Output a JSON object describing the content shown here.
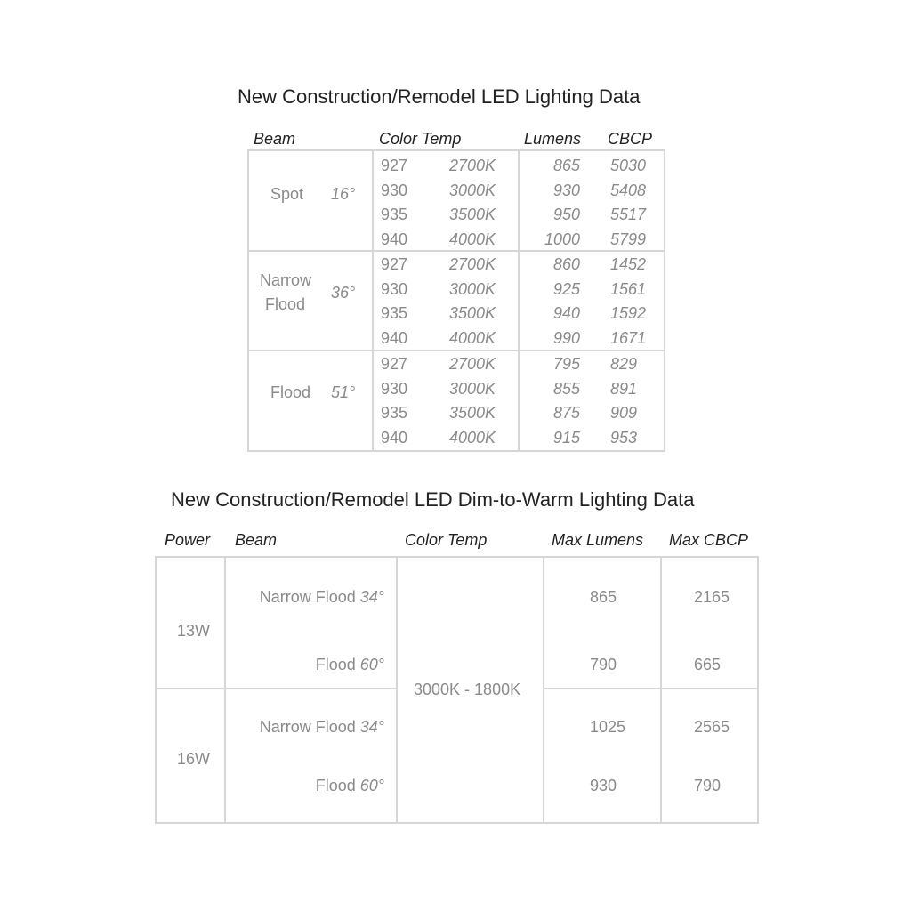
{
  "table1": {
    "title": "New Construction/Remodel LED Lighting Data",
    "headers": {
      "beam": "Beam",
      "color_temp": "Color Temp",
      "lumens": "Lumens",
      "cbcp": "CBCP"
    },
    "groups": [
      {
        "beam": [
          "Spot"
        ],
        "angle": "16°",
        "rows": [
          {
            "code": "927",
            "temp": "2700K",
            "lumens": "865",
            "cbcp": "5030"
          },
          {
            "code": "930",
            "temp": "3000K",
            "lumens": "930",
            "cbcp": "5408"
          },
          {
            "code": "935",
            "temp": "3500K",
            "lumens": "950",
            "cbcp": "5517"
          },
          {
            "code": "940",
            "temp": "4000K",
            "lumens": "1000",
            "cbcp": "5799"
          }
        ]
      },
      {
        "beam": [
          "Narrow",
          "Flood"
        ],
        "angle": "36°",
        "rows": [
          {
            "code": "927",
            "temp": "2700K",
            "lumens": "860",
            "cbcp": "1452"
          },
          {
            "code": "930",
            "temp": "3000K",
            "lumens": "925",
            "cbcp": "1561"
          },
          {
            "code": "935",
            "temp": "3500K",
            "lumens": "940",
            "cbcp": "1592"
          },
          {
            "code": "940",
            "temp": "4000K",
            "lumens": "990",
            "cbcp": "1671"
          }
        ]
      },
      {
        "beam": [
          "Flood"
        ],
        "angle": "51°",
        "rows": [
          {
            "code": "927",
            "temp": "2700K",
            "lumens": "795",
            "cbcp": "829"
          },
          {
            "code": "930",
            "temp": "3000K",
            "lumens": "855",
            "cbcp": "891"
          },
          {
            "code": "935",
            "temp": "3500K",
            "lumens": "875",
            "cbcp": "909"
          },
          {
            "code": "940",
            "temp": "4000K",
            "lumens": "915",
            "cbcp": "953"
          }
        ]
      }
    ]
  },
  "table2": {
    "title": "New Construction/Remodel LED Dim-to-Warm Lighting Data",
    "headers": {
      "power": "Power",
      "beam": "Beam",
      "color_temp": "Color Temp",
      "max_lumens": "Max Lumens",
      "max_cbcp": "Max CBCP"
    },
    "color_temp": "3000K - 1800K",
    "groups": [
      {
        "power": "13W",
        "rows": [
          {
            "beam": "Narrow Flood",
            "angle": "34°",
            "lumens": "865",
            "cbcp": "2165"
          },
          {
            "beam": "Flood",
            "angle": "60°",
            "lumens": "790",
            "cbcp": "665"
          }
        ]
      },
      {
        "power": "16W",
        "rows": [
          {
            "beam": "Narrow Flood",
            "angle": "34°",
            "lumens": "1025",
            "cbcp": "2565"
          },
          {
            "beam": "Flood",
            "angle": "60°",
            "lumens": "930",
            "cbcp": "790"
          }
        ]
      }
    ]
  }
}
